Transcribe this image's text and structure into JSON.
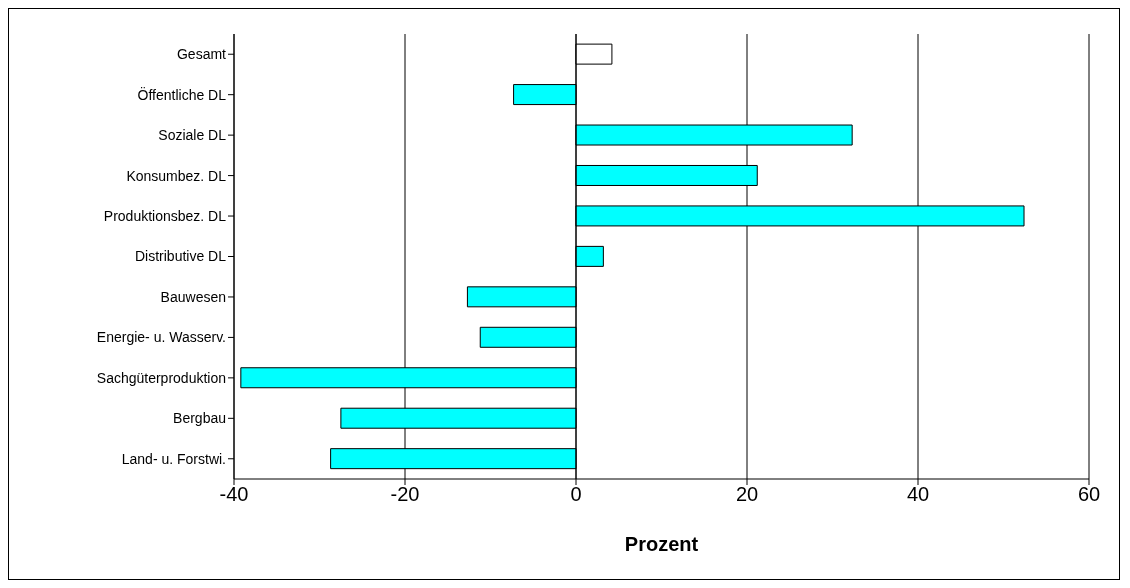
{
  "chart_data": {
    "type": "bar",
    "orientation": "horizontal",
    "xlabel": "Prozent",
    "categories": [
      "Gesamt",
      "Öffentliche DL",
      "Soziale DL",
      "Konsumbez. DL",
      "Produktionsbez. DL",
      "Distributive DL",
      "Bauwesen",
      "Energie- u. Wasserv.",
      "Sachgüterproduktion",
      "Bergbau",
      "Land- u. Forstwi."
    ],
    "values": [
      4.2,
      -7.3,
      32.3,
      21.2,
      52.4,
      3.2,
      -12.7,
      -11.2,
      -39.2,
      -27.5,
      -28.7
    ],
    "colors": [
      "#ffffff",
      "#00ffff",
      "#00ffff",
      "#00ffff",
      "#00ffff",
      "#00ffff",
      "#00ffff",
      "#00ffff",
      "#00ffff",
      "#00ffff",
      "#00ffff"
    ],
    "xlim": [
      -40,
      60
    ],
    "xticks": [
      -40,
      -20,
      0,
      20,
      40,
      60
    ],
    "grid": "x"
  }
}
